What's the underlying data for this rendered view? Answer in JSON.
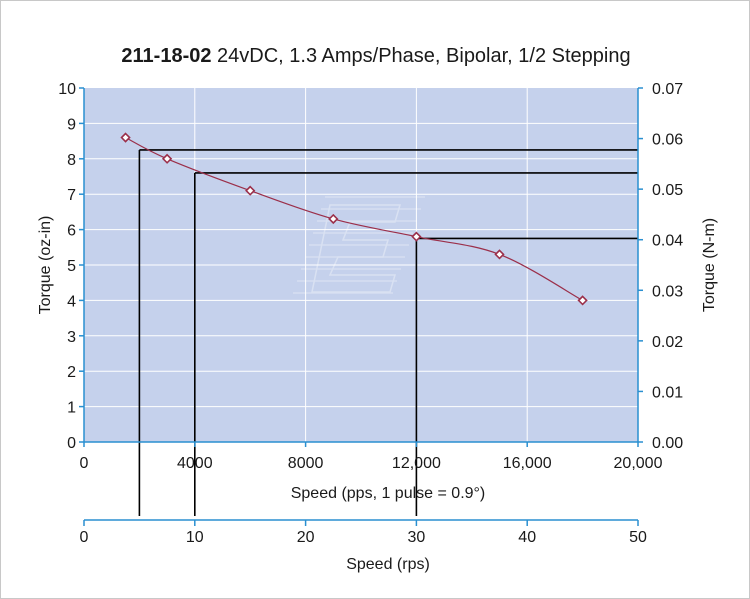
{
  "title": {
    "bold": "211-18-02",
    "rest": " 24vDC, 1.3 Amps/Phase, Bipolar, 1/2 Stepping"
  },
  "colors": {
    "plot_background": "#c5d1ec",
    "axis": "#2a8fd0",
    "series": "#9b2f4a",
    "guide_lines": "#000000"
  },
  "chart_data": {
    "type": "line",
    "title": "211-18-02 24vDC, 1.3 Amps/Phase, Bipolar, 1/2 Stepping",
    "xlabel": "Speed (pps, 1 pulse = 0.9°)",
    "ylabel": "Torque (oz-in)",
    "y2label": "Torque (N-m)",
    "x2label": "Speed (rps)",
    "xlim": [
      0,
      20000
    ],
    "ylim": [
      0,
      10
    ],
    "y2lim": [
      0,
      0.07
    ],
    "x2lim": [
      0,
      50
    ],
    "grid": true,
    "x_ticks": [
      "0",
      "4000",
      "8000",
      "12,000",
      "16,000",
      "20,000"
    ],
    "x_tick_values": [
      0,
      4000,
      8000,
      12000,
      16000,
      20000
    ],
    "y_ticks": [
      "0",
      "1",
      "2",
      "3",
      "4",
      "5",
      "6",
      "7",
      "8",
      "9",
      "10"
    ],
    "y2_ticks": [
      "0.00",
      "0.01",
      "0.02",
      "0.03",
      "0.04",
      "0.05",
      "0.06",
      "0.07"
    ],
    "x2_ticks": [
      "0",
      "10",
      "20",
      "30",
      "40",
      "50"
    ],
    "series": [
      {
        "x": [
          1500,
          3000,
          6000,
          9000,
          12000,
          15000,
          18000
        ],
        "y": [
          8.6,
          8.0,
          7.1,
          6.3,
          5.8,
          5.3,
          4.0
        ]
      }
    ],
    "reference_lines": [
      {
        "x": 2000,
        "y": 8.25
      },
      {
        "x": 4000,
        "y": 7.6
      },
      {
        "x": 12000,
        "y": 5.75
      }
    ]
  }
}
